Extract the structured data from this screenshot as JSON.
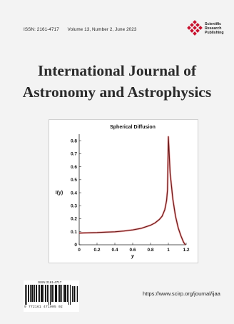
{
  "header": {
    "issn": "ISSN: 2161-4717",
    "volume": "Volume 13, Number 2, June 2023"
  },
  "publisher": {
    "line1": "Scientific",
    "line2": "Research",
    "line3": "Publishing",
    "logo_color": "#c8102e"
  },
  "journal": {
    "title_line1": "International Journal of",
    "title_line2": "Astronomy and Astrophysics"
  },
  "chart_data": {
    "type": "line",
    "title": "Spherical Diffusion",
    "xlabel": "y",
    "ylabel": "I(y)",
    "xlim": [
      0,
      1.2
    ],
    "ylim": [
      0,
      0.85
    ],
    "xticks": [
      0,
      0.2,
      0.4,
      0.6,
      0.8,
      1,
      1.2
    ],
    "xtick_labels": [
      "0",
      "0.2",
      "0.4",
      "0.6",
      "0.8",
      "1",
      "1.2"
    ],
    "yticks": [
      0,
      0.1,
      0.2,
      0.3,
      0.4,
      0.5,
      0.6,
      0.7,
      0.8
    ],
    "ytick_labels": [
      "0",
      "0.1",
      "0.2",
      "0.3",
      "0.4",
      "0.5",
      "0.6",
      "0.7",
      "0.8"
    ],
    "series": [
      {
        "color": "#6b1a1a",
        "x": [
          0,
          0.1,
          0.2,
          0.3,
          0.4,
          0.5,
          0.6,
          0.7,
          0.8,
          0.85,
          0.9,
          0.93,
          0.96,
          0.98,
          0.99,
          1.0,
          1.02,
          1.05,
          1.08,
          1.11,
          1.14,
          1.17,
          1.19
        ],
        "y": [
          0.09,
          0.092,
          0.094,
          0.097,
          0.1,
          0.106,
          0.114,
          0.127,
          0.15,
          0.168,
          0.195,
          0.22,
          0.27,
          0.34,
          0.42,
          0.83,
          0.55,
          0.35,
          0.22,
          0.13,
          0.07,
          0.02,
          0.0
        ]
      }
    ]
  },
  "barcode": {
    "issn_label": "ISSN 2161-4717",
    "digits": "9  772161 471005   02"
  },
  "url": "https://www.scirp.org/journal/ijaa"
}
